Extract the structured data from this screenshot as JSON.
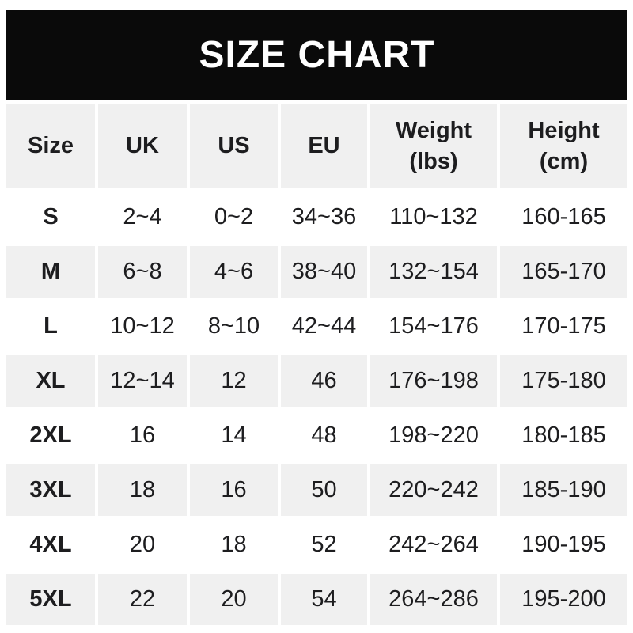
{
  "banner": {
    "title": "SIZE CHART"
  },
  "chart_data": {
    "type": "table",
    "title": "SIZE CHART",
    "columns": [
      "Size",
      "UK",
      "US",
      "EU",
      "Weight\n(lbs)",
      "Height\n(cm)"
    ],
    "rows": [
      [
        "S",
        "2~4",
        "0~2",
        "34~36",
        "110~132",
        "160-165"
      ],
      [
        "M",
        "6~8",
        "4~6",
        "38~40",
        "132~154",
        "165-170"
      ],
      [
        "L",
        "10~12",
        "8~10",
        "42~44",
        "154~176",
        "170-175"
      ],
      [
        "XL",
        "12~14",
        "12",
        "46",
        "176~198",
        "175-180"
      ],
      [
        "2XL",
        "16",
        "14",
        "48",
        "198~220",
        "180-185"
      ],
      [
        "3XL",
        "18",
        "16",
        "50",
        "220~242",
        "185-190"
      ],
      [
        "4XL",
        "20",
        "18",
        "52",
        "242~264",
        "190-195"
      ],
      [
        "5XL",
        "22",
        "20",
        "54",
        "264~286",
        "195-200"
      ]
    ],
    "layout": {
      "first_data_row_background": "white",
      "alternating_rows": true,
      "range_separator_weight": "~",
      "range_separator_height": "-"
    }
  },
  "colors": {
    "banner_bg": "#0a0a0a",
    "banner_text": "#ffffff",
    "alt_bg": "#f0f0f0",
    "row_bg": "#ffffff",
    "text": "#1d1d1f"
  }
}
